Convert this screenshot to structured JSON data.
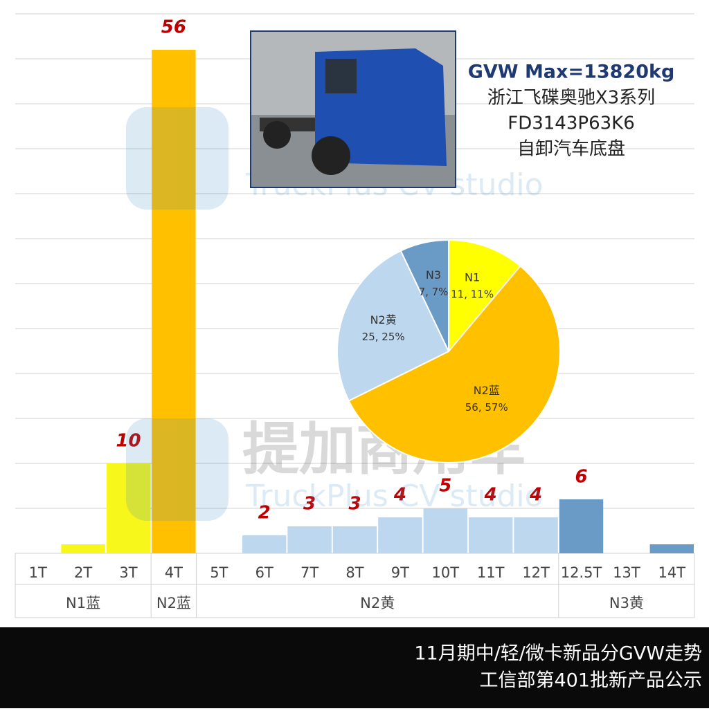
{
  "chart_data": [
    {
      "type": "bar",
      "categories": [
        "1T",
        "2T",
        "3T",
        "4T",
        "5T",
        "6T",
        "7T",
        "8T",
        "9T",
        "10T",
        "11T",
        "12T",
        "12.5T",
        "13T",
        "14T"
      ],
      "groups": [
        "N1蓝",
        null,
        null,
        "N2蓝",
        "N2黄",
        null,
        null,
        null,
        null,
        null,
        null,
        null,
        "N3黄",
        null,
        null
      ],
      "values": [
        0,
        1,
        10,
        56,
        0,
        2,
        3,
        3,
        4,
        5,
        4,
        4,
        6,
        0,
        1
      ],
      "value_labels": [
        null,
        null,
        "10",
        "56",
        null,
        "2",
        "3",
        "3",
        "4",
        "5",
        "4",
        "4",
        "6",
        null,
        null
      ],
      "colors": [
        "#f7f71c",
        "#f7f71c",
        "#f7f71c",
        "#ffc000",
        "#bdd7ee",
        "#bdd7ee",
        "#bdd7ee",
        "#bdd7ee",
        "#bdd7ee",
        "#bdd7ee",
        "#bdd7ee",
        "#bdd7ee",
        "#6a9ac6",
        "#6a9ac6",
        "#6a9ac6"
      ],
      "ylim": [
        0,
        60
      ],
      "yticks": [
        0,
        5,
        10,
        15,
        20,
        25,
        30,
        35,
        40,
        45,
        50,
        55,
        60
      ],
      "grid": true
    },
    {
      "type": "pie",
      "categories": [
        "N1",
        "N2蓝",
        "N2黄",
        "N3"
      ],
      "values": [
        11,
        56,
        25,
        7
      ],
      "value_labels": [
        "11, 11%",
        "56, 57%",
        "25, 25%",
        "7, 7%"
      ],
      "colors": [
        "#ffff00",
        "#ffc000",
        "#bdd7ee",
        "#6a9ac6"
      ]
    }
  ],
  "info": {
    "lines": [
      "GVW Max=13820kg",
      "浙江飞碟奥驰X3系列",
      "FD3143P63K6",
      "自卸汽车底盘"
    ]
  },
  "watermark": {
    "cn": "提加商用车",
    "en": "TruckPlus CV studio"
  },
  "footer": {
    "lines": [
      "11月期中/轻/微卡新品分GVW走势",
      "工信部第401批新产品公示"
    ]
  }
}
